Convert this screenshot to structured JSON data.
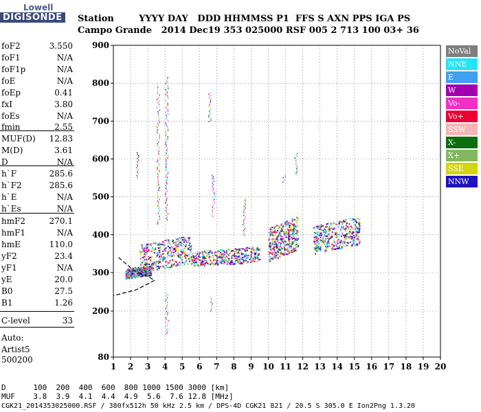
{
  "logo": {
    "line1": "Lowell",
    "line2": "DIGISONDE"
  },
  "header": {
    "row1": "Station        YYYY DAY   DDD HHMMSS P1  FFS S AXN PPS IGA PS",
    "row2": "Campo Grande   2014 Dec19 353 025000 RSF 005 2 713 100 03+ 36"
  },
  "params": [
    {
      "name": "foF2",
      "value": "3.550"
    },
    {
      "name": "foF1",
      "value": "N/A"
    },
    {
      "name": "foF1p",
      "value": "N/A"
    },
    {
      "name": "foE",
      "value": "N/A"
    },
    {
      "name": "foEp",
      "value": "0.41"
    },
    {
      "name": "fxI",
      "value": "3.80"
    },
    {
      "name": "foEs",
      "value": "N/A"
    },
    {
      "name": "fmin",
      "value": "2.55"
    },
    {
      "name": "MUF(D)",
      "value": "12.83"
    },
    {
      "name": "M(D)",
      "value": "3.61"
    },
    {
      "name": "D",
      "value": "N/A"
    },
    {
      "name": "h`F",
      "value": "285.6"
    },
    {
      "name": "h`F2",
      "value": "285.6"
    },
    {
      "name": "h`E",
      "value": "N/A"
    },
    {
      "name": "h`Es",
      "value": "N/A"
    },
    {
      "name": "hmF2",
      "value": "270.1"
    },
    {
      "name": "hmF1",
      "value": "N/A"
    },
    {
      "name": "hmE",
      "value": "110.0"
    },
    {
      "name": "yF2",
      "value": "23.4"
    },
    {
      "name": "yF1",
      "value": "N/A"
    },
    {
      "name": "yE",
      "value": "20.0"
    },
    {
      "name": "B0",
      "value": "27.5"
    },
    {
      "name": "B1",
      "value": "1.26"
    },
    {
      "name": "C-level",
      "value": "33"
    }
  ],
  "auto": {
    "line1": "Auto:",
    "line2": "Artist5",
    "line3": "500200"
  },
  "legend": [
    {
      "label": "NoVal",
      "color": "#7f7f7f"
    },
    {
      "label": "NNE",
      "color": "#22e4f4"
    },
    {
      "label": "E",
      "color": "#3fa0f0"
    },
    {
      "label": "W",
      "color": "#a000b0"
    },
    {
      "label": "Vo-",
      "color": "#f030c8"
    },
    {
      "label": "Vo+",
      "color": "#ee0030"
    },
    {
      "label": "SSW",
      "color": "#f6b4b4"
    },
    {
      "label": "X-",
      "color": "#0e6e0e"
    },
    {
      "label": "X+",
      "color": "#80b860"
    },
    {
      "label": "SSE",
      "color": "#d4d40e"
    },
    {
      "label": "NNW",
      "color": "#2010c0"
    }
  ],
  "footer": {
    "row1": "D      100  200  400  600  800 1000 1500 3000 [km]",
    "row2": "MUF    3.8  3.9  4.1  4.4  4.9  5.6  7.6 12.8 [MHz]",
    "row3": "CGK21_2014353025000.RSF / 380fx512h 50 kHz 2.5 km / DPS-4D CGK21 821 / 20.5 S 305.0 E Ion2Png 1.3.20"
  },
  "chart_data": {
    "type": "scatter",
    "xlim": [
      1,
      20
    ],
    "ylim": [
      80,
      900
    ],
    "x_ticks": [
      1,
      2,
      3,
      4,
      5,
      6,
      7,
      8,
      9,
      10,
      11,
      12,
      13,
      14,
      15,
      16,
      17,
      18,
      19,
      20
    ],
    "y_ticks": [
      80,
      200,
      300,
      400,
      500,
      600,
      700,
      800,
      900
    ],
    "grid": true,
    "legend_placement": "right",
    "trace_clusters": [
      {
        "x0": 1.7,
        "x1": 3.2,
        "y0": 285,
        "y1": 320,
        "series": "mixed"
      },
      {
        "x0": 2.5,
        "x1": 5.5,
        "y0": 300,
        "y1": 400,
        "series": "mixed"
      },
      {
        "x0": 5.5,
        "x1": 9.5,
        "y0": 315,
        "y1": 370,
        "series": "mixed"
      },
      {
        "x0": 10.0,
        "x1": 11.7,
        "y0": 330,
        "y1": 450,
        "series": "mixed"
      },
      {
        "x0": 12.6,
        "x1": 15.3,
        "y0": 350,
        "y1": 450,
        "series": "mixed"
      }
    ],
    "profile_curve": [
      {
        "x": 1.3,
        "y": 340
      },
      {
        "x": 2.2,
        "y": 305
      },
      {
        "x": 3.0,
        "y": 290
      },
      {
        "x": 3.4,
        "y": 280
      },
      {
        "x": 2.8,
        "y": 266
      },
      {
        "x": 2.3,
        "y": 255
      },
      {
        "x": 1.0,
        "y": 240
      }
    ]
  }
}
